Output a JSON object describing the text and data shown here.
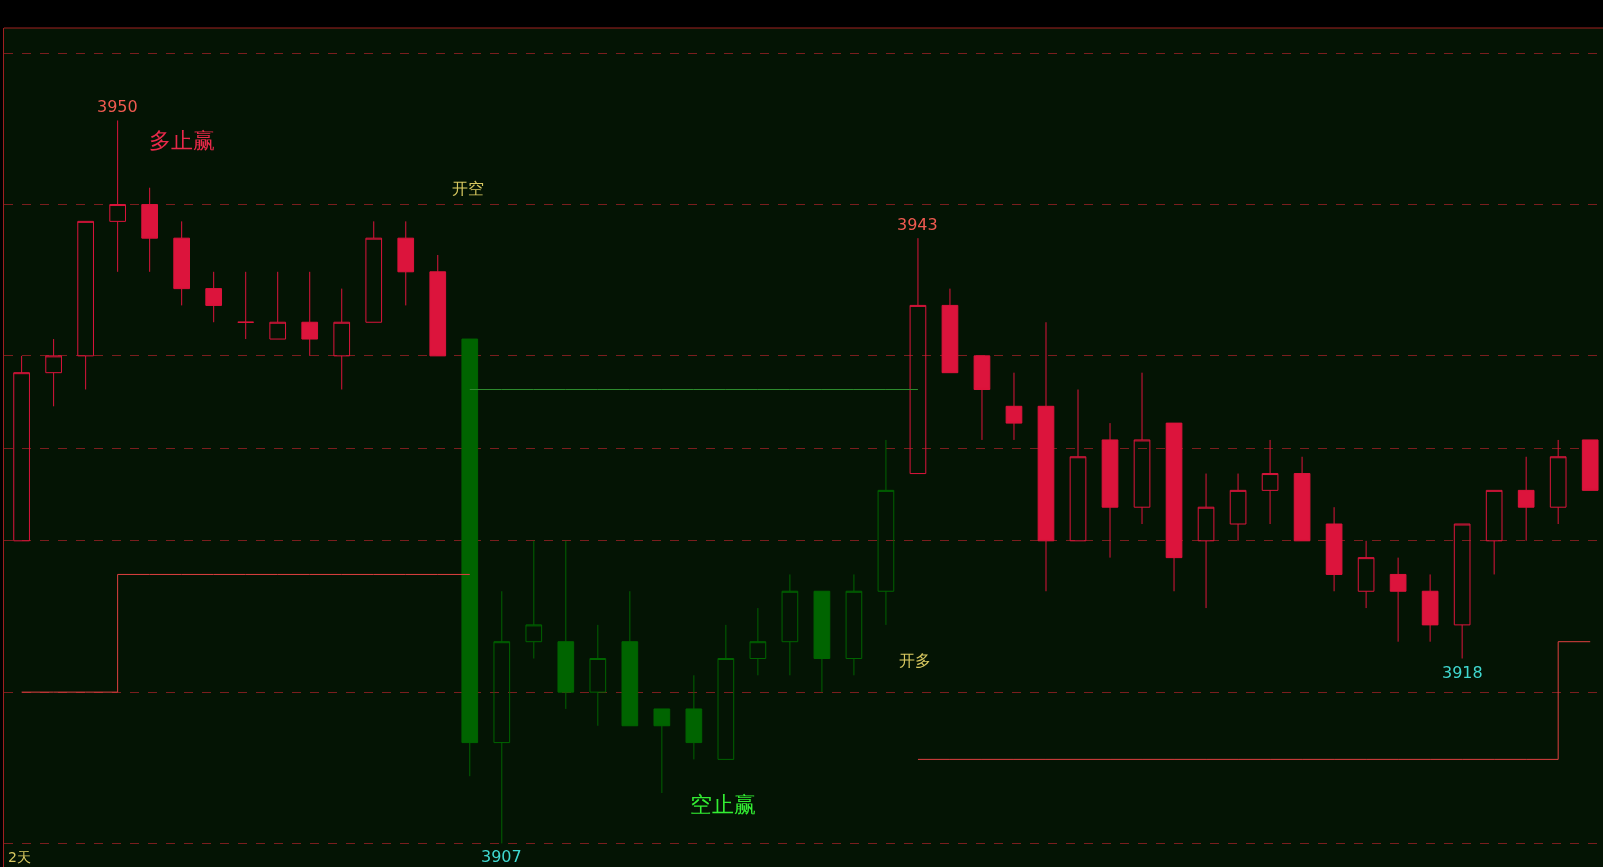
{
  "chart_data": {
    "type": "candlestick",
    "categories": [
      null,
      null,
      null,
      null,
      null,
      null,
      null,
      null,
      null,
      null,
      null,
      null,
      null,
      null,
      null,
      null,
      null,
      null,
      null,
      null,
      null,
      null,
      null,
      null,
      null,
      null,
      null,
      null,
      null,
      null,
      null,
      null,
      null,
      null,
      null,
      null,
      null,
      null,
      null,
      null,
      null,
      null,
      null,
      null,
      null,
      null,
      null,
      null,
      null,
      null
    ],
    "ohlc": [
      [
        3925,
        3936,
        3925,
        3935
      ],
      [
        3935,
        3937,
        3933,
        3936
      ],
      [
        3936,
        3944,
        3934,
        3944
      ],
      [
        3944,
        3950,
        3941,
        3945
      ],
      [
        3945,
        3946,
        3941,
        3943
      ],
      [
        3943,
        3944,
        3939,
        3940
      ],
      [
        3940,
        3941,
        3938,
        3939
      ],
      [
        3938,
        3941,
        3937,
        3938
      ],
      [
        3937,
        3941,
        3937,
        3938
      ],
      [
        3938,
        3941,
        3936,
        3937
      ],
      [
        3936,
        3940,
        3934,
        3938
      ],
      [
        3938,
        3944,
        3938,
        3943
      ],
      [
        3943,
        3944,
        3939,
        3941
      ],
      [
        3941,
        3942,
        3936,
        3936
      ],
      [
        3937,
        3937,
        3911,
        3913
      ],
      [
        3913,
        3922,
        3907,
        3919
      ],
      [
        3919,
        3925,
        3918,
        3920
      ],
      [
        3919,
        3925,
        3915,
        3916
      ],
      [
        3916,
        3920,
        3914,
        3918
      ],
      [
        3919,
        3922,
        3914,
        3914
      ],
      [
        3915,
        3915,
        3910,
        3914
      ],
      [
        3915,
        3917,
        3912,
        3913
      ],
      [
        3912,
        3920,
        3912,
        3918
      ],
      [
        3918,
        3921,
        3917,
        3919
      ],
      [
        3919,
        3923,
        3917,
        3922
      ],
      [
        3922,
        3922,
        3916,
        3918
      ],
      [
        3918,
        3923,
        3917,
        3922
      ],
      [
        3922,
        3931,
        3920,
        3928
      ],
      [
        3929,
        3943,
        3929,
        3939
      ],
      [
        3939,
        3940,
        3935,
        3935
      ],
      [
        3936,
        3936,
        3931,
        3934
      ],
      [
        3933,
        3935,
        3931,
        3932
      ],
      [
        3933,
        3938,
        3922,
        3925
      ],
      [
        3925,
        3934,
        3925,
        3930
      ],
      [
        3931,
        3932,
        3924,
        3927
      ],
      [
        3927,
        3935,
        3926,
        3931
      ],
      [
        3932,
        3932,
        3922,
        3924
      ],
      [
        3925,
        3929,
        3921,
        3927
      ],
      [
        3926,
        3929,
        3925,
        3928
      ],
      [
        3928,
        3931,
        3926,
        3929
      ],
      [
        3929,
        3930,
        3925,
        3925
      ],
      [
        3926,
        3927,
        3922,
        3923
      ],
      [
        3922,
        3925,
        3921,
        3924
      ],
      [
        3923,
        3924,
        3919,
        3922
      ],
      [
        3922,
        3923,
        3919,
        3920
      ],
      [
        3920,
        3926,
        3918,
        3926
      ],
      [
        3925,
        3928,
        3923,
        3928
      ],
      [
        3928,
        3930,
        3925,
        3927
      ],
      [
        3927,
        3931,
        3926,
        3930
      ],
      [
        3931,
        3931,
        3928,
        3928
      ]
    ],
    "colors": [
      "#dc143c",
      "#dc143c",
      "#dc143c",
      "#dc143c",
      "#dc143c",
      "#dc143c",
      "#dc143c",
      "#dc143c",
      "#dc143c",
      "#dc143c",
      "#dc143c",
      "#dc143c",
      "#dc143c",
      "#dc143c",
      "#006400",
      "#006400",
      "#006400",
      "#006400",
      "#006400",
      "#006400",
      "#006400",
      "#006400",
      "#006400",
      "#006400",
      "#006400",
      "#006400",
      "#006400",
      "#006400",
      "#dc143c",
      "#dc143c",
      "#dc143c",
      "#dc143c",
      "#dc143c",
      "#dc143c",
      "#dc143c",
      "#dc143c",
      "#dc143c",
      "#dc143c",
      "#dc143c",
      "#dc143c",
      "#dc143c",
      "#dc143c",
      "#dc143c",
      "#dc143c",
      "#dc143c",
      "#dc143c",
      "#dc143c",
      "#dc143c",
      "#dc143c",
      "#dc143c"
    ],
    "series": [
      {
        "type": "step",
        "color": "#e04040",
        "values": [
          3916,
          3916,
          3916,
          3923,
          3923,
          3923,
          3923,
          3923,
          3923,
          3923,
          3923,
          3923,
          3923,
          3923,
          3923,
          null,
          null,
          null,
          null,
          null,
          null,
          null,
          null,
          null,
          null,
          null,
          null,
          null,
          null,
          null,
          null,
          null,
          null,
          null,
          null,
          null,
          null,
          null,
          null,
          null,
          null,
          null,
          null,
          null,
          null,
          null,
          null,
          null,
          null,
          null
        ]
      },
      {
        "type": "step",
        "color": "#2e8b2e",
        "values": [
          null,
          null,
          null,
          null,
          null,
          null,
          null,
          null,
          null,
          null,
          null,
          null,
          null,
          null,
          3934,
          3934,
          3934,
          3934,
          3934,
          3934,
          3934,
          3934,
          3934,
          3934,
          3934,
          3934,
          3934,
          3934,
          3934,
          null,
          null,
          null,
          null,
          null,
          null,
          null,
          null,
          null,
          null,
          null,
          null,
          null,
          null,
          null,
          null,
          null,
          null,
          null,
          null,
          null
        ]
      },
      {
        "type": "step",
        "color": "#e04040",
        "values": [
          null,
          null,
          null,
          null,
          null,
          null,
          null,
          null,
          null,
          null,
          null,
          null,
          null,
          null,
          null,
          null,
          null,
          null,
          null,
          null,
          null,
          null,
          null,
          null,
          null,
          null,
          null,
          null,
          3912,
          3912,
          3912,
          3912,
          3912,
          3912,
          3912,
          3912,
          3912,
          3912,
          3912,
          3912,
          3912,
          3912,
          3912,
          3912,
          3912,
          3912,
          3912,
          3912,
          3919,
          3919
        ]
      }
    ],
    "annotations": [
      {
        "text": "3950",
        "y": 3950
      },
      {
        "text": "3943",
        "y": 3943
      },
      {
        "text": "3918",
        "y": 3918
      },
      {
        "text": "3907",
        "y": 3907
      },
      "多止赢",
      "开空",
      "开多",
      "空止赢",
      "2天"
    ],
    "ylim": [
      3905.6,
      3955.5
    ],
    "yticks": [
      {
        "value": 3954,
        "label": null
      },
      {
        "value": 3945,
        "label": null
      },
      {
        "value": 3936,
        "label": null
      },
      {
        "value": 3930.5,
        "label": null
      },
      {
        "value": 3925,
        "label": null
      },
      {
        "value": 3916,
        "label": null
      },
      {
        "value": 3907,
        "label": null
      }
    ],
    "grid": "y"
  }
}
